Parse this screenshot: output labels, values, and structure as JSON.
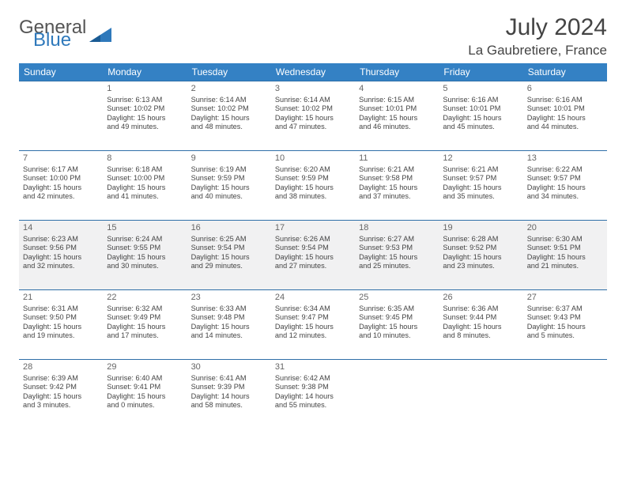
{
  "brand": {
    "general": "General",
    "blue": "Blue"
  },
  "title": "July 2024",
  "location": "La Gaubretiere, France",
  "colors": {
    "header_bg": "#3481c4",
    "header_fg": "#ffffff",
    "sep": "#2f6fa8",
    "shade": "#f1f1f2",
    "logo_blue": "#2f79bb",
    "text": "#444444"
  },
  "weekdays": [
    "Sunday",
    "Monday",
    "Tuesday",
    "Wednesday",
    "Thursday",
    "Friday",
    "Saturday"
  ],
  "weeks": [
    {
      "shaded": false,
      "days": [
        null,
        {
          "n": "1",
          "sr": "Sunrise: 6:13 AM",
          "ss": "Sunset: 10:02 PM",
          "d1": "Daylight: 15 hours",
          "d2": "and 49 minutes."
        },
        {
          "n": "2",
          "sr": "Sunrise: 6:14 AM",
          "ss": "Sunset: 10:02 PM",
          "d1": "Daylight: 15 hours",
          "d2": "and 48 minutes."
        },
        {
          "n": "3",
          "sr": "Sunrise: 6:14 AM",
          "ss": "Sunset: 10:02 PM",
          "d1": "Daylight: 15 hours",
          "d2": "and 47 minutes."
        },
        {
          "n": "4",
          "sr": "Sunrise: 6:15 AM",
          "ss": "Sunset: 10:01 PM",
          "d1": "Daylight: 15 hours",
          "d2": "and 46 minutes."
        },
        {
          "n": "5",
          "sr": "Sunrise: 6:16 AM",
          "ss": "Sunset: 10:01 PM",
          "d1": "Daylight: 15 hours",
          "d2": "and 45 minutes."
        },
        {
          "n": "6",
          "sr": "Sunrise: 6:16 AM",
          "ss": "Sunset: 10:01 PM",
          "d1": "Daylight: 15 hours",
          "d2": "and 44 minutes."
        }
      ]
    },
    {
      "shaded": false,
      "days": [
        {
          "n": "7",
          "sr": "Sunrise: 6:17 AM",
          "ss": "Sunset: 10:00 PM",
          "d1": "Daylight: 15 hours",
          "d2": "and 42 minutes."
        },
        {
          "n": "8",
          "sr": "Sunrise: 6:18 AM",
          "ss": "Sunset: 10:00 PM",
          "d1": "Daylight: 15 hours",
          "d2": "and 41 minutes."
        },
        {
          "n": "9",
          "sr": "Sunrise: 6:19 AM",
          "ss": "Sunset: 9:59 PM",
          "d1": "Daylight: 15 hours",
          "d2": "and 40 minutes."
        },
        {
          "n": "10",
          "sr": "Sunrise: 6:20 AM",
          "ss": "Sunset: 9:59 PM",
          "d1": "Daylight: 15 hours",
          "d2": "and 38 minutes."
        },
        {
          "n": "11",
          "sr": "Sunrise: 6:21 AM",
          "ss": "Sunset: 9:58 PM",
          "d1": "Daylight: 15 hours",
          "d2": "and 37 minutes."
        },
        {
          "n": "12",
          "sr": "Sunrise: 6:21 AM",
          "ss": "Sunset: 9:57 PM",
          "d1": "Daylight: 15 hours",
          "d2": "and 35 minutes."
        },
        {
          "n": "13",
          "sr": "Sunrise: 6:22 AM",
          "ss": "Sunset: 9:57 PM",
          "d1": "Daylight: 15 hours",
          "d2": "and 34 minutes."
        }
      ]
    },
    {
      "shaded": true,
      "days": [
        {
          "n": "14",
          "sr": "Sunrise: 6:23 AM",
          "ss": "Sunset: 9:56 PM",
          "d1": "Daylight: 15 hours",
          "d2": "and 32 minutes."
        },
        {
          "n": "15",
          "sr": "Sunrise: 6:24 AM",
          "ss": "Sunset: 9:55 PM",
          "d1": "Daylight: 15 hours",
          "d2": "and 30 minutes."
        },
        {
          "n": "16",
          "sr": "Sunrise: 6:25 AM",
          "ss": "Sunset: 9:54 PM",
          "d1": "Daylight: 15 hours",
          "d2": "and 29 minutes."
        },
        {
          "n": "17",
          "sr": "Sunrise: 6:26 AM",
          "ss": "Sunset: 9:54 PM",
          "d1": "Daylight: 15 hours",
          "d2": "and 27 minutes."
        },
        {
          "n": "18",
          "sr": "Sunrise: 6:27 AM",
          "ss": "Sunset: 9:53 PM",
          "d1": "Daylight: 15 hours",
          "d2": "and 25 minutes."
        },
        {
          "n": "19",
          "sr": "Sunrise: 6:28 AM",
          "ss": "Sunset: 9:52 PM",
          "d1": "Daylight: 15 hours",
          "d2": "and 23 minutes."
        },
        {
          "n": "20",
          "sr": "Sunrise: 6:30 AM",
          "ss": "Sunset: 9:51 PM",
          "d1": "Daylight: 15 hours",
          "d2": "and 21 minutes."
        }
      ]
    },
    {
      "shaded": false,
      "days": [
        {
          "n": "21",
          "sr": "Sunrise: 6:31 AM",
          "ss": "Sunset: 9:50 PM",
          "d1": "Daylight: 15 hours",
          "d2": "and 19 minutes."
        },
        {
          "n": "22",
          "sr": "Sunrise: 6:32 AM",
          "ss": "Sunset: 9:49 PM",
          "d1": "Daylight: 15 hours",
          "d2": "and 17 minutes."
        },
        {
          "n": "23",
          "sr": "Sunrise: 6:33 AM",
          "ss": "Sunset: 9:48 PM",
          "d1": "Daylight: 15 hours",
          "d2": "and 14 minutes."
        },
        {
          "n": "24",
          "sr": "Sunrise: 6:34 AM",
          "ss": "Sunset: 9:47 PM",
          "d1": "Daylight: 15 hours",
          "d2": "and 12 minutes."
        },
        {
          "n": "25",
          "sr": "Sunrise: 6:35 AM",
          "ss": "Sunset: 9:45 PM",
          "d1": "Daylight: 15 hours",
          "d2": "and 10 minutes."
        },
        {
          "n": "26",
          "sr": "Sunrise: 6:36 AM",
          "ss": "Sunset: 9:44 PM",
          "d1": "Daylight: 15 hours",
          "d2": "and 8 minutes."
        },
        {
          "n": "27",
          "sr": "Sunrise: 6:37 AM",
          "ss": "Sunset: 9:43 PM",
          "d1": "Daylight: 15 hours",
          "d2": "and 5 minutes."
        }
      ]
    },
    {
      "shaded": false,
      "days": [
        {
          "n": "28",
          "sr": "Sunrise: 6:39 AM",
          "ss": "Sunset: 9:42 PM",
          "d1": "Daylight: 15 hours",
          "d2": "and 3 minutes."
        },
        {
          "n": "29",
          "sr": "Sunrise: 6:40 AM",
          "ss": "Sunset: 9:41 PM",
          "d1": "Daylight: 15 hours",
          "d2": "and 0 minutes."
        },
        {
          "n": "30",
          "sr": "Sunrise: 6:41 AM",
          "ss": "Sunset: 9:39 PM",
          "d1": "Daylight: 14 hours",
          "d2": "and 58 minutes."
        },
        {
          "n": "31",
          "sr": "Sunrise: 6:42 AM",
          "ss": "Sunset: 9:38 PM",
          "d1": "Daylight: 14 hours",
          "d2": "and 55 minutes."
        },
        null,
        null,
        null
      ]
    }
  ]
}
